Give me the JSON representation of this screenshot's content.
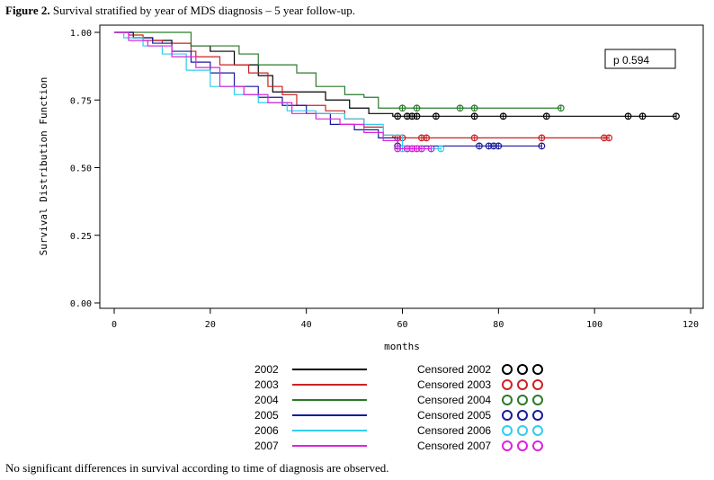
{
  "caption": {
    "label": "Figure 2.",
    "text": " Survival stratified by year of MDS diagnosis – 5 year follow-up."
  },
  "footnote": "No significant differences in survival according to time of diagnosis are observed.",
  "pvalue": "p 0.594",
  "chart_data": {
    "type": "line",
    "subtype": "kaplan-meier step",
    "title": "",
    "xlabel": "months",
    "ylabel": "Survival Distribution Function",
    "xlim": [
      0,
      120
    ],
    "ylim": [
      0,
      1
    ],
    "xticks": [
      0,
      20,
      40,
      60,
      80,
      100,
      120
    ],
    "xtick_labels": [
      "0",
      "20",
      "40",
      "60",
      "80",
      "100",
      "120"
    ],
    "yticks": [
      0,
      0.25,
      0.5,
      0.75,
      1
    ],
    "ytick_labels": [
      "0.00",
      "0.25",
      "0.50",
      "0.75",
      "1.00"
    ],
    "series": [
      {
        "name": "2002",
        "censor_label": "Censored 2002",
        "color": "#000000",
        "steps": [
          [
            0,
            1
          ],
          [
            4,
            0.98
          ],
          [
            8,
            0.97
          ],
          [
            12,
            0.96
          ],
          [
            16,
            0.95
          ],
          [
            20,
            0.93
          ],
          [
            25,
            0.88
          ],
          [
            30,
            0.84
          ],
          [
            33,
            0.78
          ],
          [
            40,
            0.78
          ],
          [
            44,
            0.75
          ],
          [
            49,
            0.72
          ],
          [
            53,
            0.7
          ],
          [
            58,
            0.69
          ],
          [
            117,
            0.69
          ]
        ],
        "censored": [
          59,
          61,
          62,
          63,
          67,
          75,
          81,
          90,
          107,
          110,
          117
        ]
      },
      {
        "name": "2003",
        "censor_label": "Censored 2003",
        "color": "#cc2222",
        "steps": [
          [
            0,
            1
          ],
          [
            3,
            0.99
          ],
          [
            6,
            0.97
          ],
          [
            10,
            0.96
          ],
          [
            16,
            0.93
          ],
          [
            17,
            0.91
          ],
          [
            22,
            0.88
          ],
          [
            28,
            0.85
          ],
          [
            32,
            0.8
          ],
          [
            35,
            0.77
          ],
          [
            38,
            0.73
          ],
          [
            44,
            0.71
          ],
          [
            48,
            0.68
          ],
          [
            52,
            0.65
          ],
          [
            56,
            0.62
          ],
          [
            58,
            0.61
          ],
          [
            103,
            0.61
          ]
        ],
        "censored": [
          59,
          60,
          64,
          65,
          75,
          89,
          102,
          103
        ]
      },
      {
        "name": "2004",
        "censor_label": "Censored 2004",
        "color": "#2a7a2a",
        "steps": [
          [
            0,
            1
          ],
          [
            16,
            0.95
          ],
          [
            26,
            0.92
          ],
          [
            30,
            0.88
          ],
          [
            38,
            0.85
          ],
          [
            42,
            0.8
          ],
          [
            47,
            0.8
          ],
          [
            48,
            0.77
          ],
          [
            52,
            0.76
          ],
          [
            55,
            0.72
          ],
          [
            93,
            0.72
          ]
        ],
        "censored": [
          60,
          63,
          72,
          75,
          93
        ]
      },
      {
        "name": "2005",
        "censor_label": "Censored 2005",
        "color": "#1a1aa0",
        "steps": [
          [
            0,
            1
          ],
          [
            4,
            0.98
          ],
          [
            8,
            0.96
          ],
          [
            12,
            0.93
          ],
          [
            16,
            0.89
          ],
          [
            20,
            0.85
          ],
          [
            25,
            0.8
          ],
          [
            30,
            0.76
          ],
          [
            35,
            0.73
          ],
          [
            40,
            0.7
          ],
          [
            45,
            0.66
          ],
          [
            50,
            0.64
          ],
          [
            55,
            0.61
          ],
          [
            59,
            0.58
          ],
          [
            89,
            0.58
          ]
        ],
        "censored": [
          59,
          76,
          78,
          79,
          80,
          89
        ]
      },
      {
        "name": "2006",
        "censor_label": "Censored 2006",
        "color": "#33ccee",
        "steps": [
          [
            0,
            1
          ],
          [
            2,
            0.98
          ],
          [
            6,
            0.95
          ],
          [
            10,
            0.92
          ],
          [
            15,
            0.86
          ],
          [
            20,
            0.8
          ],
          [
            25,
            0.77
          ],
          [
            30,
            0.74
          ],
          [
            36,
            0.71
          ],
          [
            42,
            0.7
          ],
          [
            48,
            0.68
          ],
          [
            52,
            0.66
          ],
          [
            56,
            0.62
          ],
          [
            60,
            0.57
          ],
          [
            68,
            0.57
          ]
        ],
        "censored": [
          60,
          61,
          64,
          66,
          68
        ]
      },
      {
        "name": "2007",
        "censor_label": "Censored 2007",
        "color": "#dd22dd",
        "steps": [
          [
            0,
            1
          ],
          [
            3,
            0.97
          ],
          [
            7,
            0.95
          ],
          [
            12,
            0.91
          ],
          [
            17,
            0.87
          ],
          [
            22,
            0.8
          ],
          [
            27,
            0.77
          ],
          [
            32,
            0.74
          ],
          [
            37,
            0.7
          ],
          [
            42,
            0.68
          ],
          [
            47,
            0.66
          ],
          [
            52,
            0.63
          ],
          [
            56,
            0.6
          ],
          [
            59,
            0.57
          ],
          [
            66,
            0.57
          ]
        ],
        "censored": [
          59,
          61,
          62,
          63,
          64,
          66
        ]
      }
    ]
  }
}
